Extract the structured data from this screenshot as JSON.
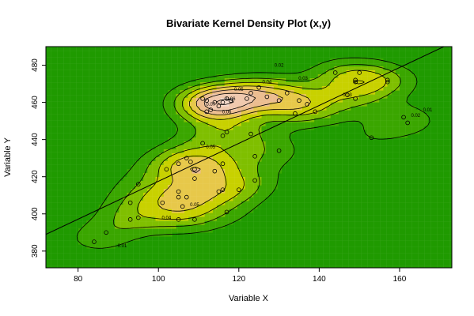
{
  "chart_data": {
    "type": "heatmap",
    "title": "Bivariate Kernel Density Plot (x,y)",
    "xlabel": "Variable X",
    "ylabel": "Variable Y",
    "xlim": [
      72,
      173
    ],
    "ylim": [
      371,
      490
    ],
    "x_ticks": [
      80,
      100,
      120,
      140,
      160
    ],
    "y_ticks": [
      380,
      400,
      420,
      440,
      460,
      480
    ],
    "contour_levels": [
      0.01,
      0.02,
      0.03,
      0.04,
      0.05,
      0.06,
      0.07
    ],
    "contour_labels": [
      {
        "text": "0.01",
        "x": 91,
        "y": 383
      },
      {
        "text": "0.01",
        "x": 167,
        "y": 456
      },
      {
        "text": "0.02",
        "x": 130,
        "y": 480
      },
      {
        "text": "0.02",
        "x": 164,
        "y": 453
      },
      {
        "text": "0.03",
        "x": 136,
        "y": 473
      },
      {
        "text": "0.03",
        "x": 147,
        "y": 464
      },
      {
        "text": "0.04",
        "x": 102,
        "y": 398
      },
      {
        "text": "0.04",
        "x": 127,
        "y": 471
      },
      {
        "text": "0.05",
        "x": 109,
        "y": 405
      },
      {
        "text": "0.05",
        "x": 113,
        "y": 436
      },
      {
        "text": "0.05",
        "x": 120,
        "y": 467
      },
      {
        "text": "0.06",
        "x": 117,
        "y": 455
      },
      {
        "text": "0.06",
        "x": 118,
        "y": 462
      },
      {
        "text": "0.07",
        "x": 113,
        "y": 459
      }
    ],
    "regression_line": {
      "x": [
        72,
        173
      ],
      "y": [
        389,
        492
      ]
    },
    "points": [
      {
        "x": 84,
        "y": 385
      },
      {
        "x": 87,
        "y": 390
      },
      {
        "x": 93,
        "y": 397
      },
      {
        "x": 93,
        "y": 406
      },
      {
        "x": 95,
        "y": 398
      },
      {
        "x": 95,
        "y": 416
      },
      {
        "x": 101,
        "y": 406
      },
      {
        "x": 102,
        "y": 424
      },
      {
        "x": 105,
        "y": 397
      },
      {
        "x": 105,
        "y": 409
      },
      {
        "x": 105,
        "y": 412
      },
      {
        "x": 105,
        "y": 427
      },
      {
        "x": 106,
        "y": 404
      },
      {
        "x": 107,
        "y": 409
      },
      {
        "x": 107,
        "y": 430
      },
      {
        "x": 108,
        "y": 428
      },
      {
        "x": 109,
        "y": 397
      },
      {
        "x": 109,
        "y": 419
      },
      {
        "x": 109,
        "y": 424
      },
      {
        "x": 111,
        "y": 438
      },
      {
        "x": 111,
        "y": 462
      },
      {
        "x": 112,
        "y": 455
      },
      {
        "x": 112,
        "y": 461
      },
      {
        "x": 113,
        "y": 456
      },
      {
        "x": 114,
        "y": 423
      },
      {
        "x": 114,
        "y": 460
      },
      {
        "x": 115,
        "y": 412
      },
      {
        "x": 115,
        "y": 458
      },
      {
        "x": 116,
        "y": 413
      },
      {
        "x": 116,
        "y": 427
      },
      {
        "x": 116,
        "y": 442
      },
      {
        "x": 116,
        "y": 460
      },
      {
        "x": 117,
        "y": 401
      },
      {
        "x": 117,
        "y": 444
      },
      {
        "x": 117,
        "y": 462
      },
      {
        "x": 118,
        "y": 461
      },
      {
        "x": 120,
        "y": 413
      },
      {
        "x": 122,
        "y": 462
      },
      {
        "x": 123,
        "y": 443
      },
      {
        "x": 123,
        "y": 465
      },
      {
        "x": 124,
        "y": 418
      },
      {
        "x": 124,
        "y": 431
      },
      {
        "x": 125,
        "y": 468
      },
      {
        "x": 127,
        "y": 463
      },
      {
        "x": 130,
        "y": 434
      },
      {
        "x": 130,
        "y": 461
      },
      {
        "x": 132,
        "y": 465
      },
      {
        "x": 134,
        "y": 454
      },
      {
        "x": 135,
        "y": 461
      },
      {
        "x": 137,
        "y": 459
      },
      {
        "x": 139,
        "y": 455
      },
      {
        "x": 144,
        "y": 476
      },
      {
        "x": 147,
        "y": 464
      },
      {
        "x": 149,
        "y": 462
      },
      {
        "x": 149,
        "y": 471
      },
      {
        "x": 149,
        "y": 472
      },
      {
        "x": 150,
        "y": 476
      },
      {
        "x": 153,
        "y": 441
      },
      {
        "x": 157,
        "y": 471
      },
      {
        "x": 157,
        "y": 472
      },
      {
        "x": 161,
        "y": 452
      },
      {
        "x": 162,
        "y": 449
      }
    ]
  }
}
